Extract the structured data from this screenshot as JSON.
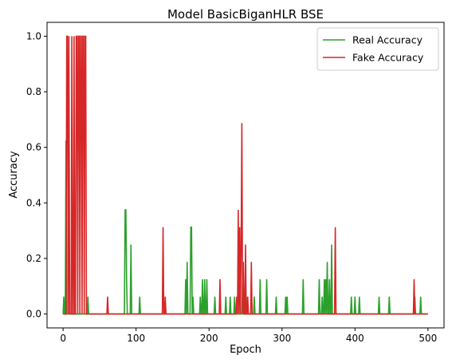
{
  "chart_data": {
    "type": "line",
    "title": "Model BasicBiganHLR BSE",
    "xlabel": "Epoch",
    "ylabel": "Accuracy",
    "xlim": [
      -22,
      522
    ],
    "ylim": [
      -0.05,
      1.05
    ],
    "x_ticks": [
      0,
      100,
      200,
      300,
      400,
      500
    ],
    "y_ticks": [
      0.0,
      0.2,
      0.4,
      0.6,
      0.8,
      1.0
    ],
    "x_tick_labels": [
      "0",
      "100",
      "200",
      "300",
      "400",
      "500"
    ],
    "y_tick_labels": [
      "0.0",
      "0.2",
      "0.4",
      "0.6",
      "0.8",
      "1.0"
    ],
    "grid": false,
    "legend": "top-right",
    "series": [
      {
        "name": "Real Accuracy",
        "color": "#2ca02c",
        "spikes": [
          [
            1,
            0.0625
          ],
          [
            4,
            0.625
          ],
          [
            34,
            0.0625
          ],
          [
            85,
            0.375
          ],
          [
            86,
            0.375
          ],
          [
            87,
            0.125
          ],
          [
            93,
            0.25
          ],
          [
            105,
            0.0625
          ],
          [
            168,
            0.125
          ],
          [
            170,
            0.1875
          ],
          [
            175,
            0.3125
          ],
          [
            176,
            0.3125
          ],
          [
            178,
            0.0625
          ],
          [
            188,
            0.0625
          ],
          [
            191,
            0.125
          ],
          [
            194,
            0.125
          ],
          [
            197,
            0.125
          ],
          [
            208,
            0.0625
          ],
          [
            223,
            0.0625
          ],
          [
            229,
            0.0625
          ],
          [
            235,
            0.0625
          ],
          [
            246,
            0.125
          ],
          [
            251,
            0.0625
          ],
          [
            262,
            0.0625
          ],
          [
            270,
            0.125
          ],
          [
            279,
            0.125
          ],
          [
            292,
            0.0625
          ],
          [
            305,
            0.0625
          ],
          [
            307,
            0.0625
          ],
          [
            329,
            0.125
          ],
          [
            351,
            0.125
          ],
          [
            355,
            0.0625
          ],
          [
            358,
            0.125
          ],
          [
            360,
            0.125
          ],
          [
            362,
            0.1875
          ],
          [
            365,
            0.125
          ],
          [
            368,
            0.25
          ],
          [
            395,
            0.0625
          ],
          [
            400,
            0.0625
          ],
          [
            406,
            0.0625
          ],
          [
            433,
            0.0625
          ],
          [
            447,
            0.0625
          ],
          [
            482,
            0.0625
          ],
          [
            490,
            0.0625
          ]
        ]
      },
      {
        "name": "Fake Accuracy",
        "color": "#d62728",
        "spikes": [
          [
            5,
            1.0
          ],
          [
            6,
            1.0
          ],
          [
            8,
            1.0
          ],
          [
            12,
            1.0
          ],
          [
            15,
            1.0
          ],
          [
            18,
            1.0
          ],
          [
            19,
            1.0
          ],
          [
            21,
            1.0
          ],
          [
            22,
            1.0
          ],
          [
            24,
            1.0
          ],
          [
            25,
            1.0
          ],
          [
            27,
            1.0
          ],
          [
            28,
            1.0
          ],
          [
            30,
            1.0
          ],
          [
            31,
            1.0
          ],
          [
            61,
            0.0625
          ],
          [
            137,
            0.3125
          ],
          [
            140,
            0.0625
          ],
          [
            215,
            0.125
          ],
          [
            238,
            0.0625
          ],
          [
            240,
            0.375
          ],
          [
            242,
            0.3125
          ],
          [
            244,
            0.25
          ],
          [
            245,
            0.6875
          ],
          [
            247,
            0.1875
          ],
          [
            250,
            0.25
          ],
          [
            253,
            0.0625
          ],
          [
            258,
            0.1875
          ],
          [
            373,
            0.3125
          ],
          [
            481,
            0.125
          ]
        ]
      }
    ]
  }
}
